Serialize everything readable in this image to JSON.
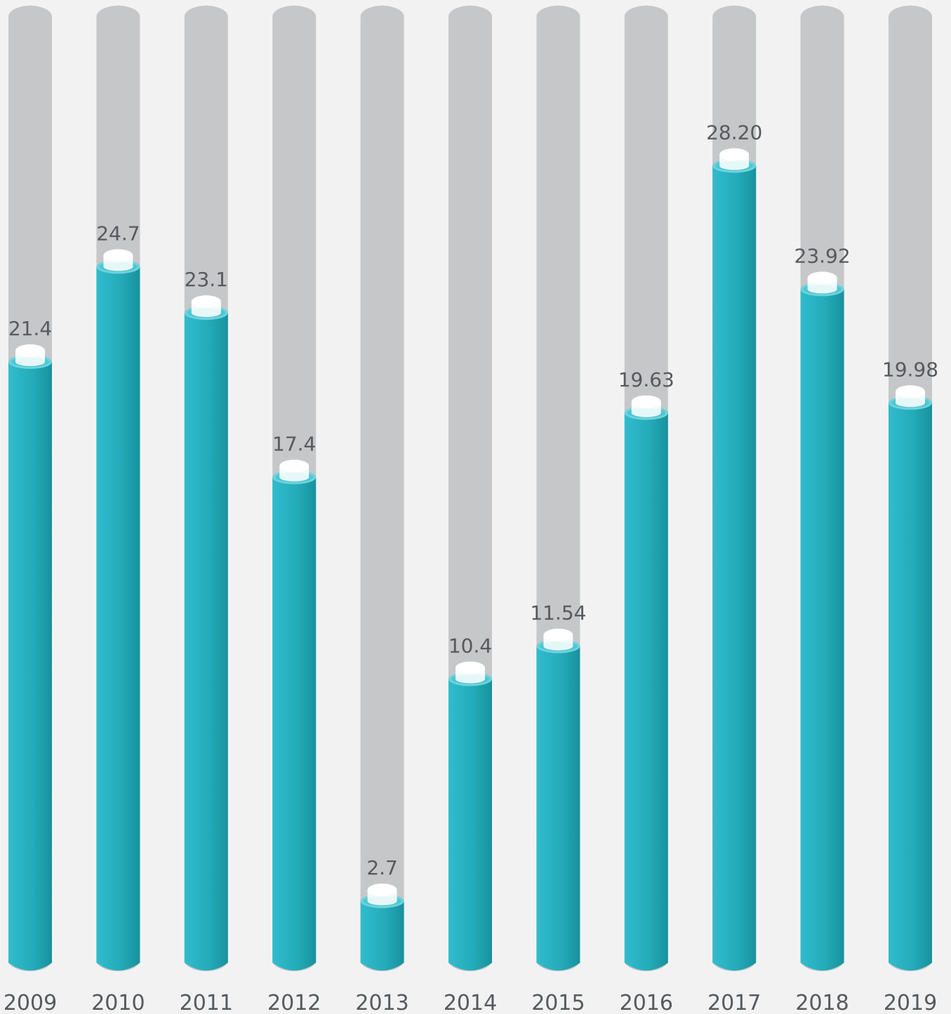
{
  "chart_data": {
    "type": "bar",
    "title": "",
    "xlabel": "",
    "ylabel": "",
    "categories": [
      "2009",
      "2010",
      "2011",
      "2012",
      "2013",
      "2014",
      "2015",
      "2016",
      "2017",
      "2018",
      "2019"
    ],
    "values": [
      21.4,
      24.7,
      23.1,
      17.4,
      2.7,
      10.4,
      11.54,
      19.63,
      28.2,
      23.92,
      19.98
    ],
    "value_labels": [
      "21.4",
      "24.7",
      "23.1",
      "17.4",
      "2.7",
      "10.4",
      "11.54",
      "19.63",
      "28.20",
      "23.92",
      "19.98"
    ],
    "ylim": [
      -10,
      30
    ],
    "grid": false,
    "legend": "none",
    "colors": {
      "bar": "#2bb5c6",
      "bar_dark": "#1a9aa5",
      "track": "#c6c7c9",
      "background": "#f2f2f2",
      "cap": "#ffffff",
      "text": "#555a5e"
    }
  }
}
